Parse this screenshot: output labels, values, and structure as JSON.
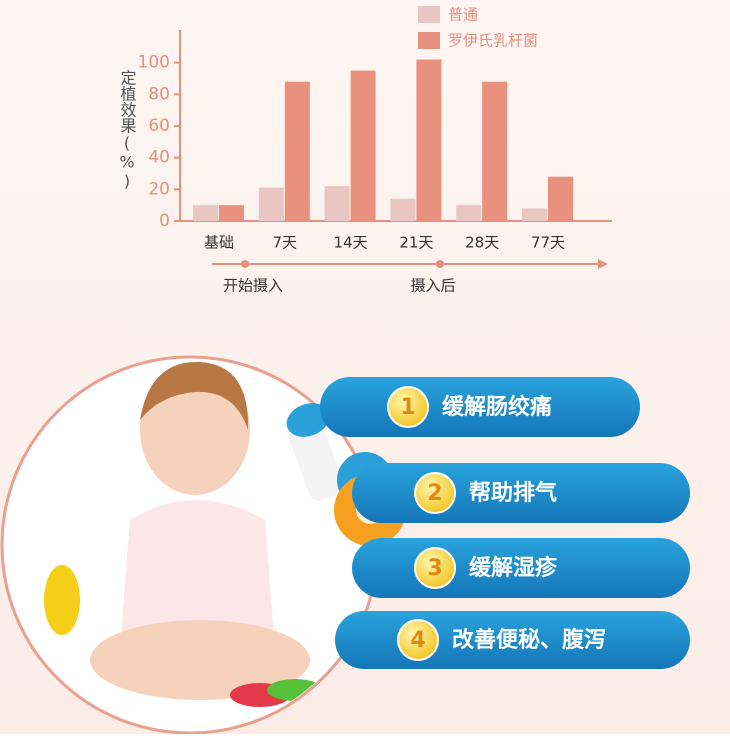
{
  "chart_data": {
    "type": "bar",
    "y_label": "定植效果(%)",
    "categories": [
      "基础",
      "7天",
      "14天",
      "21天",
      "28天",
      "77天"
    ],
    "series": [
      {
        "name": "普通",
        "color": "#e9c6c1",
        "values": [
          10,
          21,
          22,
          14,
          10,
          8
        ]
      },
      {
        "name": "罗伊氏乳杆菌",
        "color": "#e9917f",
        "values": [
          10,
          88,
          95,
          102,
          88,
          28
        ]
      }
    ],
    "ylim": [
      0,
      120
    ],
    "yticks": [
      0,
      20,
      40,
      60,
      80,
      100
    ],
    "timeline": [
      "开始摄入",
      "摄入后"
    ]
  },
  "benefits": [
    {
      "number": "1",
      "text": "缓解肠绞痛"
    },
    {
      "number": "2",
      "text": "帮助排气"
    },
    {
      "number": "3",
      "text": "缓解湿疹"
    },
    {
      "number": "4",
      "text": "改善便秘、腹泻"
    }
  ]
}
